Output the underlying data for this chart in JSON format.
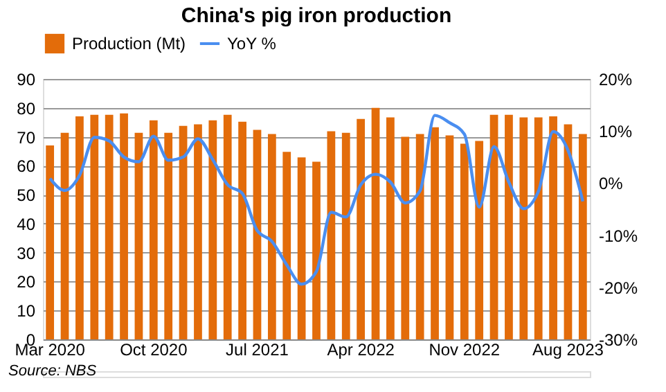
{
  "chart_data": {
    "type": "bar",
    "title": "China's pig iron production",
    "categories": [
      "Mar 2020",
      null,
      null,
      null,
      null,
      null,
      null,
      "Oct 2020",
      null,
      null,
      null,
      null,
      null,
      null,
      "Jul 2021",
      null,
      null,
      null,
      null,
      null,
      null,
      "Apr 2022",
      null,
      null,
      null,
      null,
      null,
      null,
      "Nov 2022",
      null,
      null,
      null,
      null,
      null,
      null,
      "Aug 2023",
      null
    ],
    "series": [
      {
        "name": "Production (Mt)",
        "color": "#e36c0a",
        "values": [
          67,
          71.4,
          77.1,
          77.6,
          77.6,
          78.1,
          71.4,
          75.7,
          71.4,
          73.8,
          74.3,
          75.7,
          77.6,
          75.2,
          72.4,
          71,
          64.8,
          62.9,
          61.4,
          71.9,
          71.4,
          76.2,
          80,
          76.7,
          70,
          71,
          73.3,
          70.5,
          67.6,
          68.6,
          77.6,
          77.6,
          76.7,
          76.7,
          77.1,
          74.3,
          71
        ]
      },
      {
        "name": "YoY %",
        "type": "line",
        "axis": "y2",
        "color": "#4a8ef0",
        "values": [
          0.9,
          -1.4,
          1.5,
          8.8,
          8.1,
          5,
          4.1,
          9,
          4.4,
          5,
          8.5,
          4.5,
          -0.3,
          -2,
          -9.1,
          -11.2,
          -15.7,
          -19.4,
          -17,
          -5.6,
          -6.5,
          -0.3,
          1.7,
          0.2,
          -3.8,
          -1.5,
          13,
          11.6,
          9.4,
          -4.6,
          7,
          0.2,
          -4.9,
          -1.6,
          9.9,
          6.3,
          -3.5
        ]
      }
    ],
    "ylim": [
      0,
      90
    ],
    "yticks": [
      0,
      10,
      20,
      30,
      40,
      50,
      60,
      70,
      80,
      90
    ],
    "y2lim": [
      -30,
      20
    ],
    "y2ticks": [
      {
        "value": -30,
        "label": "-30%"
      },
      {
        "value": -20,
        "label": "-20%"
      },
      {
        "value": -10,
        "label": "-10%"
      },
      {
        "value": 0,
        "label": "0%"
      },
      {
        "value": 10,
        "label": "10%"
      },
      {
        "value": 20,
        "label": "20%"
      }
    ],
    "grid": "y",
    "legend": "top",
    "line_style": "solid",
    "marker": "none",
    "annotations": [
      "Source: NBS"
    ]
  }
}
